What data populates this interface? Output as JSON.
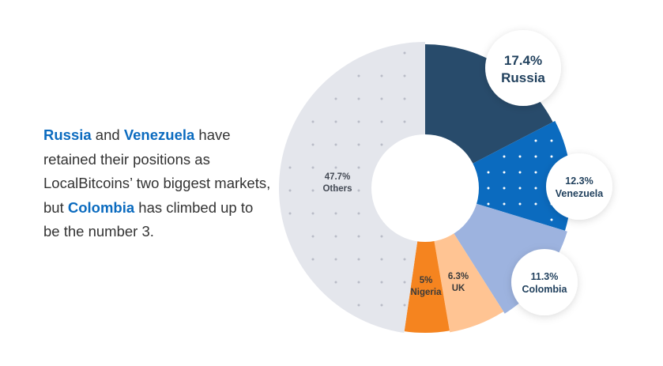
{
  "caption": {
    "p1": "Russia",
    "p2": " and ",
    "p3": "Venezuela",
    "p4": " have retained their positions as LocalBitcoins’ two biggest markets, but ",
    "p5": "Colombia",
    "p6": " has climbed up to be the number 3."
  },
  "chart_data": {
    "type": "pie",
    "categories": [
      "Russia",
      "Venezuela",
      "Colombia",
      "UK",
      "Nigeria",
      "Others"
    ],
    "values": [
      17.4,
      12.3,
      11.3,
      6.3,
      5,
      47.7
    ],
    "value_labels": [
      "17.4%",
      "12.3%",
      "11.3%",
      "6.3%",
      "5%",
      "47.7%"
    ],
    "colors": [
      "#284b6b",
      "#0b6bbf",
      "#9db3df",
      "#ffc493",
      "#f5841f",
      "#e4e6ec"
    ],
    "style": "donut",
    "label_style": {
      "Russia": "callout-circle",
      "Venezuela": "callout-circle",
      "Colombia": "callout-circle",
      "UK": "inside",
      "Nigeria": "inside",
      "Others": "inside"
    }
  }
}
